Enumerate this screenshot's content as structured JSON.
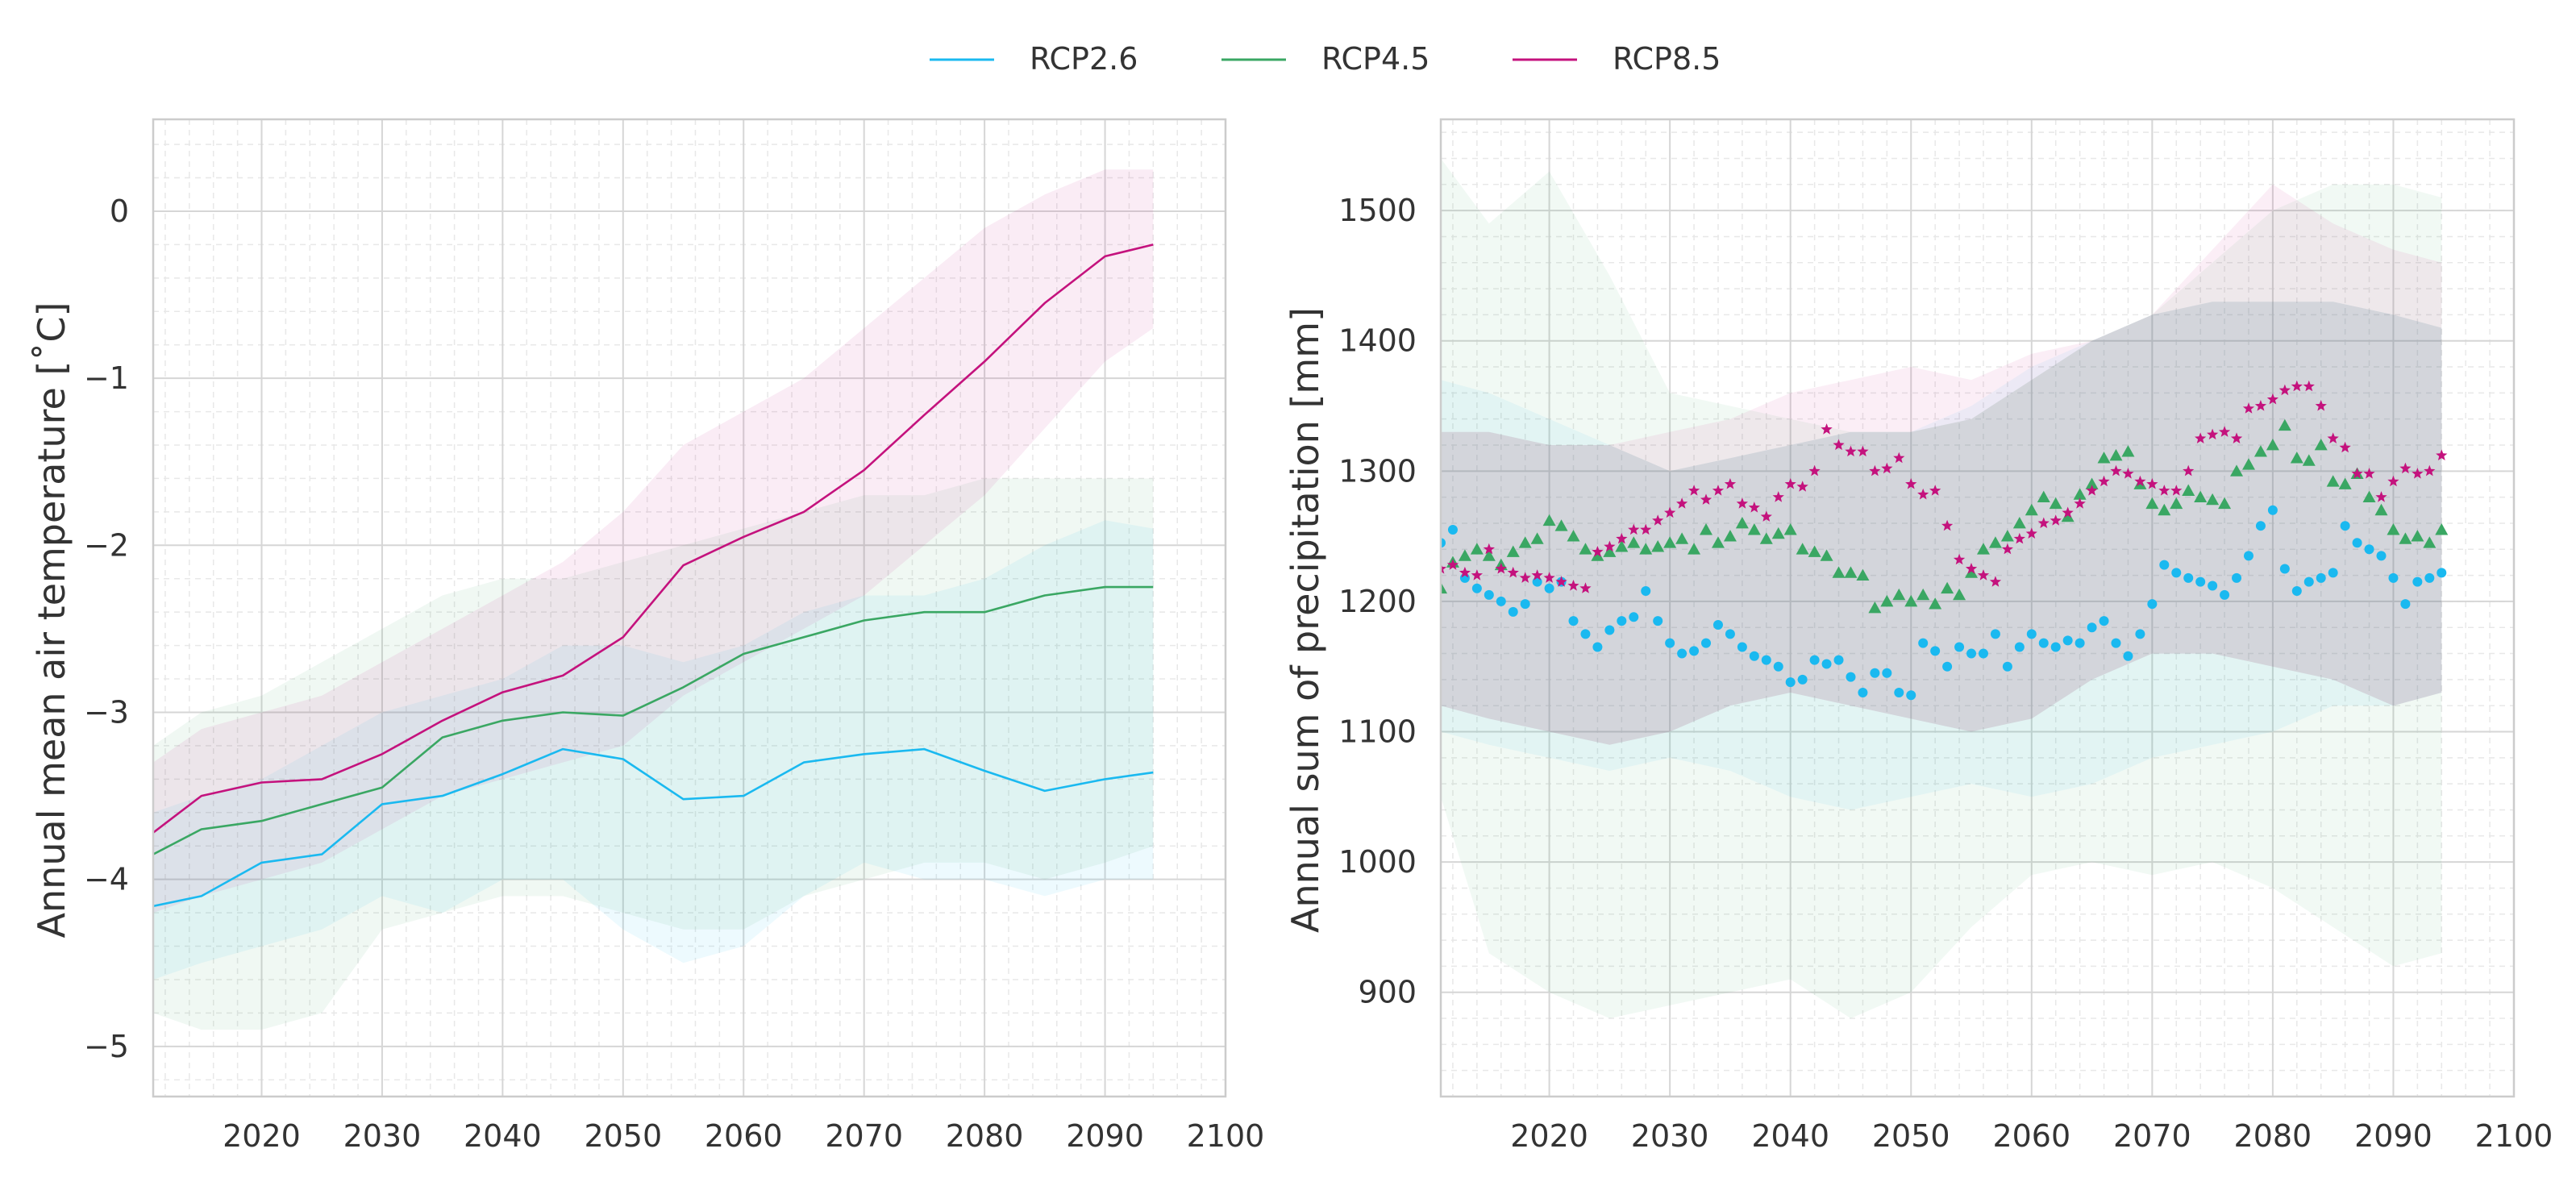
{
  "legend": {
    "items": [
      {
        "label": "RCP2.6",
        "color": "#1ab9f0"
      },
      {
        "label": "RCP4.5",
        "color": "#3aa763"
      },
      {
        "label": "RCP8.5",
        "color": "#c4127d"
      }
    ],
    "placement": "top-center"
  },
  "chart_data": [
    {
      "type": "line",
      "title": "",
      "xlabel": "",
      "ylabel": "Annual mean air temperature [˚C]",
      "xlim": [
        2011,
        2100
      ],
      "ylim": [
        -5.3,
        0.55
      ],
      "xticks": [
        2020,
        2030,
        2040,
        2050,
        2060,
        2070,
        2080,
        2090,
        2100
      ],
      "yticks": [
        -5,
        -4,
        -3,
        -2,
        -1,
        0
      ],
      "ytick_labels": [
        "−5",
        "−4",
        "−3",
        "−2",
        "−1",
        "0"
      ],
      "grid": true,
      "x": [
        2011,
        2015,
        2020,
        2025,
        2030,
        2035,
        2040,
        2045,
        2050,
        2055,
        2060,
        2065,
        2070,
        2075,
        2080,
        2085,
        2090,
        2094
      ],
      "series": [
        {
          "name": "RCP2.6",
          "color": "#1ab9f0",
          "values": [
            -4.16,
            -4.1,
            -3.9,
            -3.85,
            -3.55,
            -3.5,
            -3.37,
            -3.22,
            -3.28,
            -3.52,
            -3.5,
            -3.3,
            -3.25,
            -3.22,
            -3.35,
            -3.47,
            -3.4,
            -3.36
          ],
          "band_lower": [
            -4.6,
            -4.5,
            -4.4,
            -4.3,
            -4.1,
            -4.2,
            -4.0,
            -4.0,
            -4.3,
            -4.5,
            -4.4,
            -4.1,
            -3.9,
            -4.0,
            -4.0,
            -4.1,
            -4.0,
            -4.0
          ],
          "band_upper": [
            -3.6,
            -3.5,
            -3.4,
            -3.2,
            -3.0,
            -2.9,
            -2.8,
            -2.6,
            -2.6,
            -2.7,
            -2.6,
            -2.4,
            -2.3,
            -2.3,
            -2.2,
            -2.0,
            -1.85,
            -1.9
          ]
        },
        {
          "name": "RCP4.5",
          "color": "#3aa763",
          "values": [
            -3.85,
            -3.7,
            -3.65,
            -3.55,
            -3.45,
            -3.15,
            -3.05,
            -3.0,
            -3.02,
            -2.85,
            -2.65,
            -2.55,
            -2.45,
            -2.4,
            -2.4,
            -2.3,
            -2.25,
            -2.25
          ],
          "band_lower": [
            -4.8,
            -4.9,
            -4.9,
            -4.8,
            -4.3,
            -4.2,
            -4.1,
            -4.1,
            -4.2,
            -4.3,
            -4.3,
            -4.1,
            -4.0,
            -3.9,
            -3.9,
            -4.0,
            -3.9,
            -3.8
          ],
          "band_upper": [
            -3.2,
            -3.0,
            -2.9,
            -2.7,
            -2.5,
            -2.3,
            -2.2,
            -2.2,
            -2.1,
            -2.0,
            -1.9,
            -1.8,
            -1.7,
            -1.7,
            -1.6,
            -1.6,
            -1.6,
            -1.6
          ]
        },
        {
          "name": "RCP8.5",
          "color": "#c4127d",
          "values": [
            -3.72,
            -3.5,
            -3.42,
            -3.4,
            -3.25,
            -3.05,
            -2.88,
            -2.78,
            -2.55,
            -2.12,
            -1.95,
            -1.8,
            -1.55,
            -1.22,
            -0.9,
            -0.55,
            -0.27,
            -0.2
          ],
          "band_lower": [
            -4.2,
            -4.1,
            -4.0,
            -3.9,
            -3.7,
            -3.5,
            -3.4,
            -3.3,
            -3.2,
            -2.9,
            -2.7,
            -2.5,
            -2.3,
            -2.0,
            -1.7,
            -1.3,
            -0.9,
            -0.7
          ],
          "band_upper": [
            -3.3,
            -3.1,
            -3.0,
            -2.9,
            -2.7,
            -2.5,
            -2.3,
            -2.1,
            -1.8,
            -1.4,
            -1.2,
            -1.0,
            -0.7,
            -0.4,
            -0.1,
            0.1,
            0.25,
            0.25
          ]
        }
      ]
    },
    {
      "type": "scatter",
      "title": "",
      "xlabel": "",
      "ylabel": "Annual sum of precipitation [mm]",
      "xlim": [
        2011,
        2100
      ],
      "ylim": [
        820,
        1570
      ],
      "xticks": [
        2020,
        2030,
        2040,
        2050,
        2060,
        2070,
        2080,
        2090,
        2100
      ],
      "yticks": [
        900,
        1000,
        1100,
        1200,
        1300,
        1400,
        1500
      ],
      "grid": true,
      "bands": [
        {
          "name": "RCP2.6",
          "color": "#1ab9f0",
          "x": [
            2011,
            2015,
            2020,
            2025,
            2030,
            2035,
            2040,
            2045,
            2050,
            2055,
            2060,
            2065,
            2070,
            2075,
            2080,
            2085,
            2090,
            2094
          ],
          "lower": [
            1100,
            1090,
            1080,
            1070,
            1080,
            1070,
            1050,
            1040,
            1050,
            1060,
            1050,
            1060,
            1080,
            1090,
            1100,
            1120,
            1120,
            1130
          ],
          "upper": [
            1370,
            1360,
            1340,
            1320,
            1300,
            1310,
            1320,
            1330,
            1330,
            1350,
            1380,
            1400,
            1420,
            1430,
            1430,
            1430,
            1420,
            1410
          ]
        },
        {
          "name": "RCP4.5",
          "color": "#3aa763",
          "x": [
            2011,
            2015,
            2020,
            2025,
            2030,
            2035,
            2040,
            2045,
            2050,
            2055,
            2060,
            2065,
            2070,
            2075,
            2080,
            2085,
            2090,
            2094
          ],
          "lower": [
            1050,
            930,
            900,
            880,
            890,
            900,
            910,
            880,
            900,
            950,
            990,
            1000,
            990,
            1000,
            980,
            950,
            920,
            930
          ],
          "upper": [
            1540,
            1490,
            1530,
            1450,
            1360,
            1350,
            1340,
            1330,
            1330,
            1340,
            1370,
            1400,
            1420,
            1460,
            1500,
            1520,
            1520,
            1510
          ]
        },
        {
          "name": "RCP8.5",
          "color": "#c4127d",
          "x": [
            2011,
            2015,
            2020,
            2025,
            2030,
            2035,
            2040,
            2045,
            2050,
            2055,
            2060,
            2065,
            2070,
            2075,
            2080,
            2085,
            2090,
            2094
          ],
          "lower": [
            1120,
            1110,
            1100,
            1090,
            1100,
            1120,
            1130,
            1120,
            1110,
            1100,
            1110,
            1140,
            1160,
            1160,
            1150,
            1140,
            1120,
            1130
          ],
          "upper": [
            1330,
            1330,
            1320,
            1320,
            1330,
            1340,
            1360,
            1370,
            1380,
            1370,
            1390,
            1400,
            1420,
            1470,
            1520,
            1490,
            1470,
            1460
          ]
        }
      ],
      "series": [
        {
          "name": "RCP2.6",
          "color": "#1ab9f0",
          "marker": "circle",
          "x": [
            2011,
            2012,
            2013,
            2014,
            2015,
            2016,
            2017,
            2018,
            2019,
            2020,
            2021,
            2022,
            2023,
            2024,
            2025,
            2026,
            2027,
            2028,
            2029,
            2030,
            2031,
            2032,
            2033,
            2034,
            2035,
            2036,
            2037,
            2038,
            2039,
            2040,
            2041,
            2042,
            2043,
            2044,
            2045,
            2046,
            2047,
            2048,
            2049,
            2050,
            2051,
            2052,
            2053,
            2054,
            2055,
            2056,
            2057,
            2058,
            2059,
            2060,
            2061,
            2062,
            2063,
            2064,
            2065,
            2066,
            2067,
            2068,
            2069,
            2070,
            2071,
            2072,
            2073,
            2074,
            2075,
            2076,
            2077,
            2078,
            2079,
            2080,
            2081,
            2082,
            2083,
            2084,
            2085,
            2086,
            2087,
            2088,
            2089,
            2090,
            2091,
            2092,
            2093,
            2094
          ],
          "values": [
            1245,
            1255,
            1218,
            1210,
            1205,
            1200,
            1192,
            1198,
            1215,
            1210,
            1215,
            1185,
            1175,
            1165,
            1178,
            1185,
            1188,
            1208,
            1185,
            1168,
            1160,
            1162,
            1168,
            1182,
            1175,
            1165,
            1158,
            1155,
            1150,
            1138,
            1140,
            1155,
            1152,
            1155,
            1142,
            1130,
            1145,
            1145,
            1130,
            1128,
            1168,
            1162,
            1150,
            1165,
            1160,
            1160,
            1175,
            1150,
            1165,
            1175,
            1168,
            1165,
            1170,
            1168,
            1180,
            1185,
            1168,
            1158,
            1175,
            1198,
            1228,
            1222,
            1218,
            1215,
            1212,
            1205,
            1218,
            1235,
            1258,
            1270,
            1225,
            1208,
            1215,
            1218,
            1222,
            1258,
            1245,
            1240,
            1235,
            1218,
            1198,
            1215,
            1218,
            1222
          ]
        },
        {
          "name": "RCP4.5",
          "color": "#3aa763",
          "marker": "triangle",
          "x": [
            2011,
            2012,
            2013,
            2014,
            2015,
            2016,
            2017,
            2018,
            2019,
            2020,
            2021,
            2022,
            2023,
            2024,
            2025,
            2026,
            2027,
            2028,
            2029,
            2030,
            2031,
            2032,
            2033,
            2034,
            2035,
            2036,
            2037,
            2038,
            2039,
            2040,
            2041,
            2042,
            2043,
            2044,
            2045,
            2046,
            2047,
            2048,
            2049,
            2050,
            2051,
            2052,
            2053,
            2054,
            2055,
            2056,
            2057,
            2058,
            2059,
            2060,
            2061,
            2062,
            2063,
            2064,
            2065,
            2066,
            2067,
            2068,
            2069,
            2070,
            2071,
            2072,
            2073,
            2074,
            2075,
            2076,
            2077,
            2078,
            2079,
            2080,
            2081,
            2082,
            2083,
            2084,
            2085,
            2086,
            2087,
            2088,
            2089,
            2090,
            2091,
            2092,
            2093,
            2094
          ],
          "values": [
            1210,
            1230,
            1235,
            1240,
            1235,
            1228,
            1238,
            1245,
            1248,
            1262,
            1258,
            1250,
            1240,
            1235,
            1238,
            1242,
            1245,
            1240,
            1242,
            1245,
            1248,
            1240,
            1255,
            1245,
            1250,
            1260,
            1255,
            1248,
            1252,
            1255,
            1240,
            1238,
            1235,
            1222,
            1222,
            1220,
            1195,
            1200,
            1205,
            1200,
            1205,
            1198,
            1210,
            1205,
            1222,
            1240,
            1245,
            1250,
            1260,
            1270,
            1280,
            1275,
            1265,
            1282,
            1290,
            1310,
            1312,
            1315,
            1290,
            1275,
            1270,
            1275,
            1285,
            1280,
            1278,
            1275,
            1300,
            1305,
            1315,
            1320,
            1335,
            1310,
            1308,
            1320,
            1292,
            1290,
            1298,
            1280,
            1270,
            1255,
            1248,
            1250,
            1245,
            1255
          ]
        },
        {
          "name": "RCP8.5",
          "color": "#c4127d",
          "marker": "star",
          "x": [
            2011,
            2012,
            2013,
            2014,
            2015,
            2016,
            2017,
            2018,
            2019,
            2020,
            2021,
            2022,
            2023,
            2024,
            2025,
            2026,
            2027,
            2028,
            2029,
            2030,
            2031,
            2032,
            2033,
            2034,
            2035,
            2036,
            2037,
            2038,
            2039,
            2040,
            2041,
            2042,
            2043,
            2044,
            2045,
            2046,
            2047,
            2048,
            2049,
            2050,
            2051,
            2052,
            2053,
            2054,
            2055,
            2056,
            2057,
            2058,
            2059,
            2060,
            2061,
            2062,
            2063,
            2064,
            2065,
            2066,
            2067,
            2068,
            2069,
            2070,
            2071,
            2072,
            2073,
            2074,
            2075,
            2076,
            2077,
            2078,
            2079,
            2080,
            2081,
            2082,
            2083,
            2084,
            2085,
            2086,
            2087,
            2088,
            2089,
            2090,
            2091,
            2092,
            2093,
            2094
          ],
          "values": [
            1225,
            1228,
            1222,
            1220,
            1240,
            1225,
            1222,
            1218,
            1220,
            1218,
            1215,
            1212,
            1210,
            1238,
            1242,
            1248,
            1255,
            1255,
            1262,
            1268,
            1275,
            1285,
            1278,
            1285,
            1290,
            1275,
            1272,
            1265,
            1280,
            1290,
            1288,
            1300,
            1332,
            1320,
            1315,
            1315,
            1300,
            1302,
            1310,
            1290,
            1282,
            1285,
            1258,
            1232,
            1225,
            1220,
            1215,
            1240,
            1248,
            1252,
            1260,
            1262,
            1268,
            1275,
            1285,
            1292,
            1300,
            1298,
            1292,
            1290,
            1285,
            1285,
            1300,
            1325,
            1328,
            1330,
            1325,
            1348,
            1350,
            1355,
            1362,
            1365,
            1365,
            1350,
            1325,
            1318,
            1298,
            1298,
            1280,
            1292,
            1302,
            1298,
            1300,
            1312
          ]
        }
      ]
    }
  ]
}
